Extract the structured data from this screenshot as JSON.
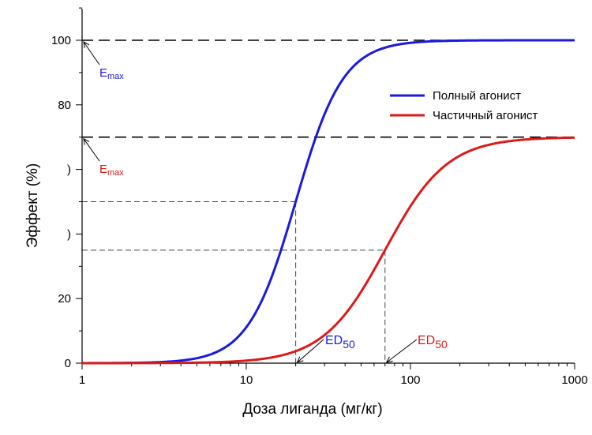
{
  "chart_data": {
    "type": "line",
    "xlabel": "Доза лиганда (мг/кг)",
    "ylabel": "Эффект (%)",
    "xscale": "log",
    "xlim": [
      1,
      1000
    ],
    "ylim": [
      0,
      100
    ],
    "x_ticks": [
      1,
      10,
      100,
      1000
    ],
    "x_tick_labels": [
      "1",
      "10",
      "100",
      "1000"
    ],
    "y_ticks": [
      0,
      20,
      40,
      60,
      80,
      100
    ],
    "y_tick_labels": [
      "0",
      "20",
      ")",
      ")",
      "80",
      "100"
    ],
    "grid": false,
    "legend": "top-right",
    "series": [
      {
        "name": "Полный агонист",
        "color": "#1a1adc",
        "emax": 100,
        "ed50": 20,
        "hill": 3.0
      },
      {
        "name": "Частичный агонист",
        "color": "#dc1a1a",
        "emax": 70,
        "ed50": 70,
        "hill": 2.3
      }
    ],
    "reference_lines": [
      {
        "y": 100,
        "style": "long-dash"
      },
      {
        "y": 70,
        "style": "long-dash"
      }
    ],
    "annotations": {
      "emax_full": {
        "base": "E",
        "sub": "max",
        "color": "#1a1adc",
        "points_to_y": 100
      },
      "emax_partial": {
        "base": "E",
        "sub": "max",
        "color": "#dc1a1a",
        "points_to_y": 70
      },
      "ed50_full": {
        "base": "ED",
        "sub": "50",
        "color": "#1a1adc",
        "points_to_x": 20
      },
      "ed50_partial": {
        "base": "ED",
        "sub": "50",
        "color": "#dc1a1a",
        "points_to_x": 70
      }
    }
  }
}
